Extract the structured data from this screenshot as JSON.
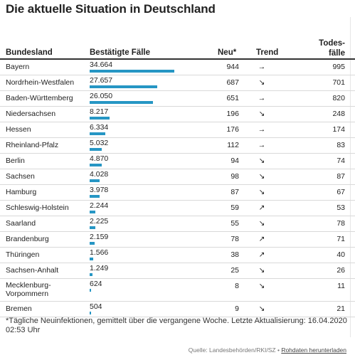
{
  "title": "Die aktuelle Situation in Deutschland",
  "header": {
    "bundesland": "Bundesland",
    "faelle": "Bestätigte Fälle",
    "neu": "Neu*",
    "trend": "Trend",
    "todes_1": "Todes-",
    "todes_2": "fälle"
  },
  "max_cases": 34664,
  "rows": [
    {
      "land": "Bayern",
      "faelle": "34.664",
      "cases": 34664,
      "neu": "944",
      "trend": "→",
      "tod": "995"
    },
    {
      "land": "Nordrhein-Westfalen",
      "faelle": "27.657",
      "cases": 27657,
      "neu": "687",
      "trend": "↘",
      "tod": "701"
    },
    {
      "land": "Baden-Württemberg",
      "faelle": "26.050",
      "cases": 26050,
      "neu": "651",
      "trend": "→",
      "tod": "820"
    },
    {
      "land": "Niedersachsen",
      "faelle": "8.217",
      "cases": 8217,
      "neu": "196",
      "trend": "↘",
      "tod": "248"
    },
    {
      "land": "Hessen",
      "faelle": "6.334",
      "cases": 6334,
      "neu": "176",
      "trend": "→",
      "tod": "174"
    },
    {
      "land": "Rheinland-Pfalz",
      "faelle": "5.032",
      "cases": 5032,
      "neu": "112",
      "trend": "→",
      "tod": "83"
    },
    {
      "land": "Berlin",
      "faelle": "4.870",
      "cases": 4870,
      "neu": "94",
      "trend": "↘",
      "tod": "74"
    },
    {
      "land": "Sachsen",
      "faelle": "4.028",
      "cases": 4028,
      "neu": "98",
      "trend": "↘",
      "tod": "87"
    },
    {
      "land": "Hamburg",
      "faelle": "3.978",
      "cases": 3978,
      "neu": "87",
      "trend": "↘",
      "tod": "67"
    },
    {
      "land": "Schleswig-Holstein",
      "faelle": "2.244",
      "cases": 2244,
      "neu": "59",
      "trend": "↗",
      "tod": "53"
    },
    {
      "land": "Saarland",
      "faelle": "2.225",
      "cases": 2225,
      "neu": "55",
      "trend": "↘",
      "tod": "78"
    },
    {
      "land": "Brandenburg",
      "faelle": "2.159",
      "cases": 2159,
      "neu": "78",
      "trend": "↗",
      "tod": "71"
    },
    {
      "land": "Thüringen",
      "faelle": "1.566",
      "cases": 1566,
      "neu": "38",
      "trend": "↗",
      "tod": "40"
    },
    {
      "land": "Sachsen-Anhalt",
      "faelle": "1.249",
      "cases": 1249,
      "neu": "25",
      "trend": "↘",
      "tod": "26"
    },
    {
      "land": "Mecklenburg-Vorpommern",
      "faelle": "624",
      "cases": 624,
      "neu": "8",
      "trend": "↘",
      "tod": "11"
    },
    {
      "land": "Bremen",
      "faelle": "504",
      "cases": 504,
      "neu": "9",
      "trend": "↘",
      "tod": "21"
    }
  ],
  "footnote": "*Tägliche Neuinfektionen, gemittelt über die vergangene Woche. Letzte Aktualisierung: 16.04.2020 02:53 Uhr",
  "source_text": "Quelle: Landesbehörden/RKI/SZ • ",
  "download_label": "Rohdaten herunterladen",
  "bar_color": "#2696c4"
}
